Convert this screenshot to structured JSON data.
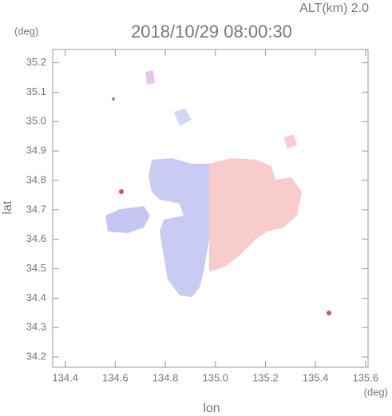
{
  "chart_data": {
    "type": "map",
    "title": "2018/10/29 08:00:30",
    "annotation": "ALT(km) 2.0",
    "xlabel": "lon",
    "ylabel": "lat",
    "x_unit": "(deg)",
    "y_unit": "(deg)",
    "xlim": [
      134.35,
      135.61
    ],
    "ylim": [
      34.165,
      35.245
    ],
    "xticks": [
      134.4,
      134.6,
      134.8,
      {
        "value": 135,
        "label": "135.0"
      },
      135.2,
      135.4,
      135.6
    ],
    "yticks": [
      34.2,
      34.3,
      34.4,
      34.5,
      34.6,
      34.7,
      34.8,
      34.9,
      {
        "value": 35,
        "label": "35.0"
      },
      35.1,
      35.2
    ]
  }
}
